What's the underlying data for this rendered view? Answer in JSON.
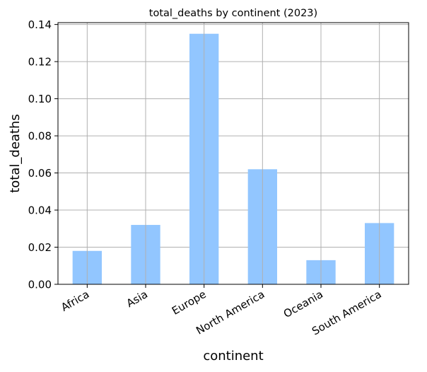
{
  "chart_data": {
    "type": "bar",
    "title": "total_deaths by continent (2023)",
    "xlabel": "continent",
    "ylabel": "total_deaths",
    "categories": [
      "Africa",
      "Asia",
      "Europe",
      "North America",
      "Oceania",
      "South America"
    ],
    "values": [
      0.018,
      0.032,
      0.135,
      0.062,
      0.013,
      0.033
    ],
    "ylim": [
      0,
      0.141
    ],
    "yticks": [
      0.0,
      0.02,
      0.04,
      0.06,
      0.08,
      0.1,
      0.12,
      0.14
    ],
    "ytick_labels": [
      "0.00",
      "0.02",
      "0.04",
      "0.06",
      "0.08",
      "0.10",
      "0.12",
      "0.14"
    ],
    "grid": true,
    "bar_color": "#92c6ff",
    "grid_color": "#b0b0b0"
  }
}
